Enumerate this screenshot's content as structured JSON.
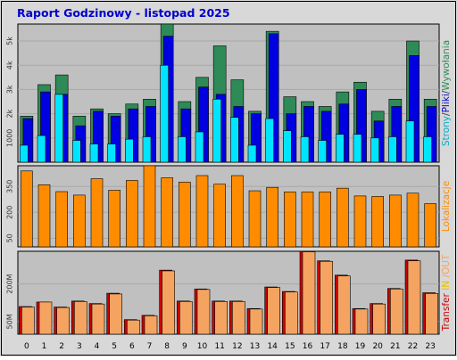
{
  "title": "Raport Godzinowy -  listopad 2025",
  "colors": {
    "background": "#d8d8d8",
    "plot_background": "#c0c0c0",
    "grid": "#a8a8a8",
    "title": "#0000cc",
    "pages": "#2e8b57",
    "files": "#0000e0",
    "hits": "#00e5ff",
    "visits": "#ff8c00",
    "transfer_out": "#cc0000",
    "transfer_in": "#f4a460"
  },
  "chart_data": [
    {
      "type": "bar",
      "title": "Raport Godzinowy -  listopad 2025",
      "categories": [
        "0",
        "1",
        "2",
        "3",
        "4",
        "5",
        "6",
        "7",
        "8",
        "9",
        "10",
        "11",
        "12",
        "13",
        "14",
        "15",
        "16",
        "17",
        "18",
        "19",
        "20",
        "21",
        "22",
        "23"
      ],
      "ylim": [
        0,
        5700
      ],
      "yticks": [
        "1000",
        "2k",
        "3k",
        "4k",
        "5k"
      ],
      "ytick_values": [
        1000,
        2000,
        3000,
        4000,
        5000
      ],
      "side_label": [
        {
          "text": "Strony",
          "color": "#00aacc"
        },
        {
          "text": "/",
          "color": "#333333"
        },
        {
          "text": "Pliki",
          "color": "#0000cc"
        },
        {
          "text": "/",
          "color": "#333333"
        },
        {
          "text": "Wywołania",
          "color": "#2e8b57"
        }
      ],
      "series": [
        {
          "key": "pages",
          "values": [
            1900,
            3200,
            3600,
            1900,
            2200,
            2000,
            2400,
            2600,
            5700,
            2500,
            3500,
            4800,
            3400,
            2100,
            5400,
            2700,
            2500,
            2300,
            2900,
            3300,
            2100,
            2600,
            5000,
            2600
          ]
        },
        {
          "key": "files",
          "values": [
            1800,
            2900,
            2800,
            1500,
            2100,
            1900,
            2200,
            2300,
            5200,
            2200,
            3100,
            2800,
            2300,
            2000,
            5300,
            2000,
            2300,
            2100,
            2400,
            3000,
            1700,
            2300,
            4400,
            2300
          ]
        },
        {
          "key": "hits",
          "values": [
            700,
            1100,
            2800,
            900,
            750,
            750,
            950,
            1050,
            4000,
            1050,
            1250,
            2600,
            1850,
            700,
            1800,
            1300,
            1050,
            900,
            1150,
            1150,
            1000,
            1050,
            1700,
            1050
          ]
        }
      ]
    },
    {
      "type": "bar",
      "categories": [
        "0",
        "1",
        "2",
        "3",
        "4",
        "5",
        "6",
        "7",
        "8",
        "9",
        "10",
        "11",
        "12",
        "13",
        "14",
        "15",
        "16",
        "17",
        "18",
        "19",
        "20",
        "21",
        "22",
        "23"
      ],
      "ylim": [
        0,
        470
      ],
      "yticks": [
        "50",
        "200",
        "350"
      ],
      "ytick_values": [
        50,
        200,
        350
      ],
      "side_label": [
        {
          "text": "Lokalizacje",
          "color": "#ff8c00"
        }
      ],
      "series": [
        {
          "key": "visits",
          "values": [
            440,
            360,
            320,
            300,
            395,
            328,
            385,
            470,
            400,
            375,
            413,
            363,
            413,
            325,
            345,
            318,
            318,
            318,
            340,
            295,
            292,
            300,
            311,
            250
          ]
        }
      ]
    },
    {
      "type": "bar",
      "categories": [
        "0",
        "1",
        "2",
        "3",
        "4",
        "5",
        "6",
        "7",
        "8",
        "9",
        "10",
        "11",
        "12",
        "13",
        "14",
        "15",
        "16",
        "17",
        "18",
        "19",
        "20",
        "21",
        "22",
        "23"
      ],
      "ylim": [
        0,
        330
      ],
      "yticks": [
        "50M",
        "200M"
      ],
      "ytick_values": [
        50,
        200
      ],
      "side_label": [
        {
          "text": "Transfer",
          "color": "#cc0000"
        },
        {
          "text": " IN ",
          "color": "#e8c000"
        },
        {
          "text": "/OUT",
          "color": "#f4a460"
        }
      ],
      "series": [
        {
          "key": "transfer_out",
          "values": [
            110,
            128,
            108,
            132,
            122,
            163,
            58,
            75,
            255,
            132,
            180,
            132,
            132,
            102,
            188,
            170,
            330,
            292,
            235,
            102,
            122,
            182,
            295,
            165
          ]
        },
        {
          "key": "transfer_in",
          "values": [
            108,
            128,
            106,
            130,
            120,
            160,
            56,
            73,
            252,
            130,
            178,
            130,
            130,
            100,
            186,
            168,
            328,
            290,
            232,
            100,
            120,
            180,
            292,
            162
          ]
        }
      ]
    }
  ]
}
